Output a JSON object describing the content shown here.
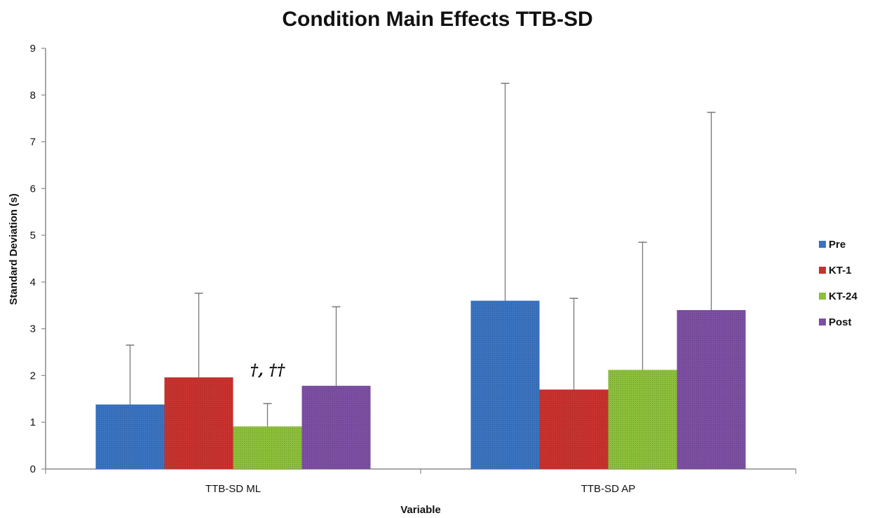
{
  "chart_data": {
    "type": "bar",
    "title": "Condition Main Effects TTB-SD",
    "xlabel": "Variable",
    "ylabel": "Standard Deviation (s)",
    "ylim": [
      0,
      9
    ],
    "yticks": [
      0,
      1,
      2,
      3,
      4,
      5,
      6,
      7,
      8,
      9
    ],
    "grid": false,
    "legend_position": "right",
    "categories": [
      "TTB-SD ML",
      "TTB-SD AP"
    ],
    "series": [
      {
        "name": "Pre",
        "color": "#3a73c0",
        "values": [
          1.38,
          3.6
        ],
        "error_upper": [
          2.65,
          8.25
        ]
      },
      {
        "name": "KT-1",
        "color": "#c8322e",
        "values": [
          1.96,
          1.7
        ],
        "error_upper": [
          3.76,
          3.65
        ]
      },
      {
        "name": "KT-24",
        "color": "#8cbf3a",
        "values": [
          0.91,
          2.12
        ],
        "error_upper": [
          1.4,
          4.85
        ]
      },
      {
        "name": "Post",
        "color": "#7d4fa3",
        "values": [
          1.78,
          3.4
        ],
        "error_upper": [
          3.47,
          7.63
        ]
      }
    ],
    "annotations": [
      {
        "text": "†, ††",
        "category": "TTB-SD ML",
        "series": "KT-24",
        "y": 2.1
      }
    ]
  }
}
